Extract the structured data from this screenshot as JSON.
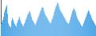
{
  "chart_data": {
    "type": "bar",
    "values": [
      28,
      32,
      38,
      45,
      55,
      62,
      68,
      72,
      52,
      30,
      25,
      22,
      20,
      35,
      42,
      38,
      32,
      28,
      25,
      22,
      30,
      35,
      40,
      45,
      38,
      32,
      28,
      25,
      22,
      28,
      32,
      38,
      42,
      48,
      52,
      55,
      58,
      52,
      45,
      38,
      35,
      32,
      28,
      25,
      30,
      35,
      40,
      45,
      50,
      55,
      60,
      65,
      68,
      65,
      58,
      52,
      48,
      45,
      42,
      38,
      35,
      32,
      28,
      32,
      38,
      42,
      48,
      55,
      62,
      68,
      72,
      78,
      75,
      68,
      62,
      58,
      55,
      52,
      48,
      45,
      42,
      38,
      35,
      32,
      30,
      28,
      32,
      38,
      45,
      52,
      58,
      62,
      65,
      60,
      55,
      48,
      42,
      38,
      35,
      32,
      28,
      25,
      22,
      25,
      30,
      35,
      40,
      45,
      50,
      55,
      60,
      58,
      52,
      48,
      42,
      38,
      35,
      32,
      28,
      25
    ],
    "color": "#4da6e8",
    "ylim": [
      0,
      84.24
    ],
    "grid": false,
    "tick_labels": false
  }
}
